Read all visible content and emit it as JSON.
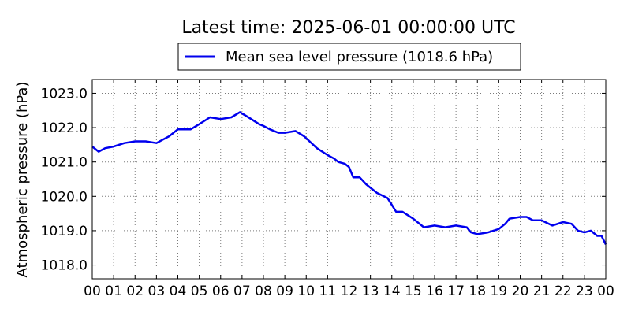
{
  "chart_data": {
    "type": "line",
    "title": "Latest time: 2025-06-01 00:00:00 UTC",
    "ylabel": "Atmospheric pressure (hPa)",
    "xlabel": "",
    "ylim": [
      1017.6,
      1023.4
    ],
    "xlim": [
      0,
      24
    ],
    "yticks": [
      1018.0,
      1019.0,
      1020.0,
      1021.0,
      1022.0,
      1023.0
    ],
    "xtick_labels": [
      "00",
      "01",
      "02",
      "03",
      "04",
      "05",
      "06",
      "07",
      "08",
      "09",
      "10",
      "11",
      "12",
      "13",
      "14",
      "15",
      "16",
      "17",
      "18",
      "19",
      "20",
      "21",
      "22",
      "23",
      "00"
    ],
    "grid": true,
    "legend_position": "top-center",
    "series_color": "#0000ee",
    "series": [
      {
        "name": "Mean sea level pressure (1018.6 hPa)",
        "x": [
          0,
          0.3,
          0.6,
          1.0,
          1.5,
          2.0,
          2.5,
          3.0,
          3.3,
          3.6,
          4.0,
          4.3,
          4.6,
          5.0,
          5.5,
          6.0,
          6.5,
          6.9,
          7.3,
          7.8,
          8.0,
          8.3,
          8.7,
          9.0,
          9.5,
          9.9,
          10.5,
          11.0,
          11.3,
          11.5,
          11.8,
          12.0,
          12.2,
          12.5,
          12.8,
          13.0,
          13.3,
          13.8,
          14.0,
          14.2,
          14.5,
          15.0,
          15.5,
          16.0,
          16.5,
          17.0,
          17.5,
          17.7,
          18.0,
          18.5,
          19.0,
          19.3,
          19.5,
          20.0,
          20.3,
          20.6,
          21.0,
          21.5,
          22.0,
          22.4,
          22.7,
          23.0,
          23.3,
          23.6,
          23.8,
          24.0
        ],
        "y": [
          1021.45,
          1021.3,
          1021.4,
          1021.45,
          1021.55,
          1021.6,
          1021.6,
          1021.55,
          1021.65,
          1021.75,
          1021.95,
          1021.95,
          1021.95,
          1022.1,
          1022.3,
          1022.25,
          1022.3,
          1022.45,
          1022.3,
          1022.1,
          1022.05,
          1021.95,
          1021.85,
          1021.85,
          1021.9,
          1021.75,
          1021.4,
          1021.2,
          1021.1,
          1021.0,
          1020.95,
          1020.85,
          1020.55,
          1020.55,
          1020.35,
          1020.25,
          1020.1,
          1019.95,
          1019.75,
          1019.55,
          1019.55,
          1019.35,
          1019.1,
          1019.15,
          1019.1,
          1019.15,
          1019.1,
          1018.95,
          1018.9,
          1018.95,
          1019.05,
          1019.2,
          1019.35,
          1019.4,
          1019.4,
          1019.3,
          1019.3,
          1019.15,
          1019.25,
          1019.2,
          1019.0,
          1018.95,
          1019.0,
          1018.85,
          1018.85,
          1018.6
        ]
      }
    ]
  }
}
